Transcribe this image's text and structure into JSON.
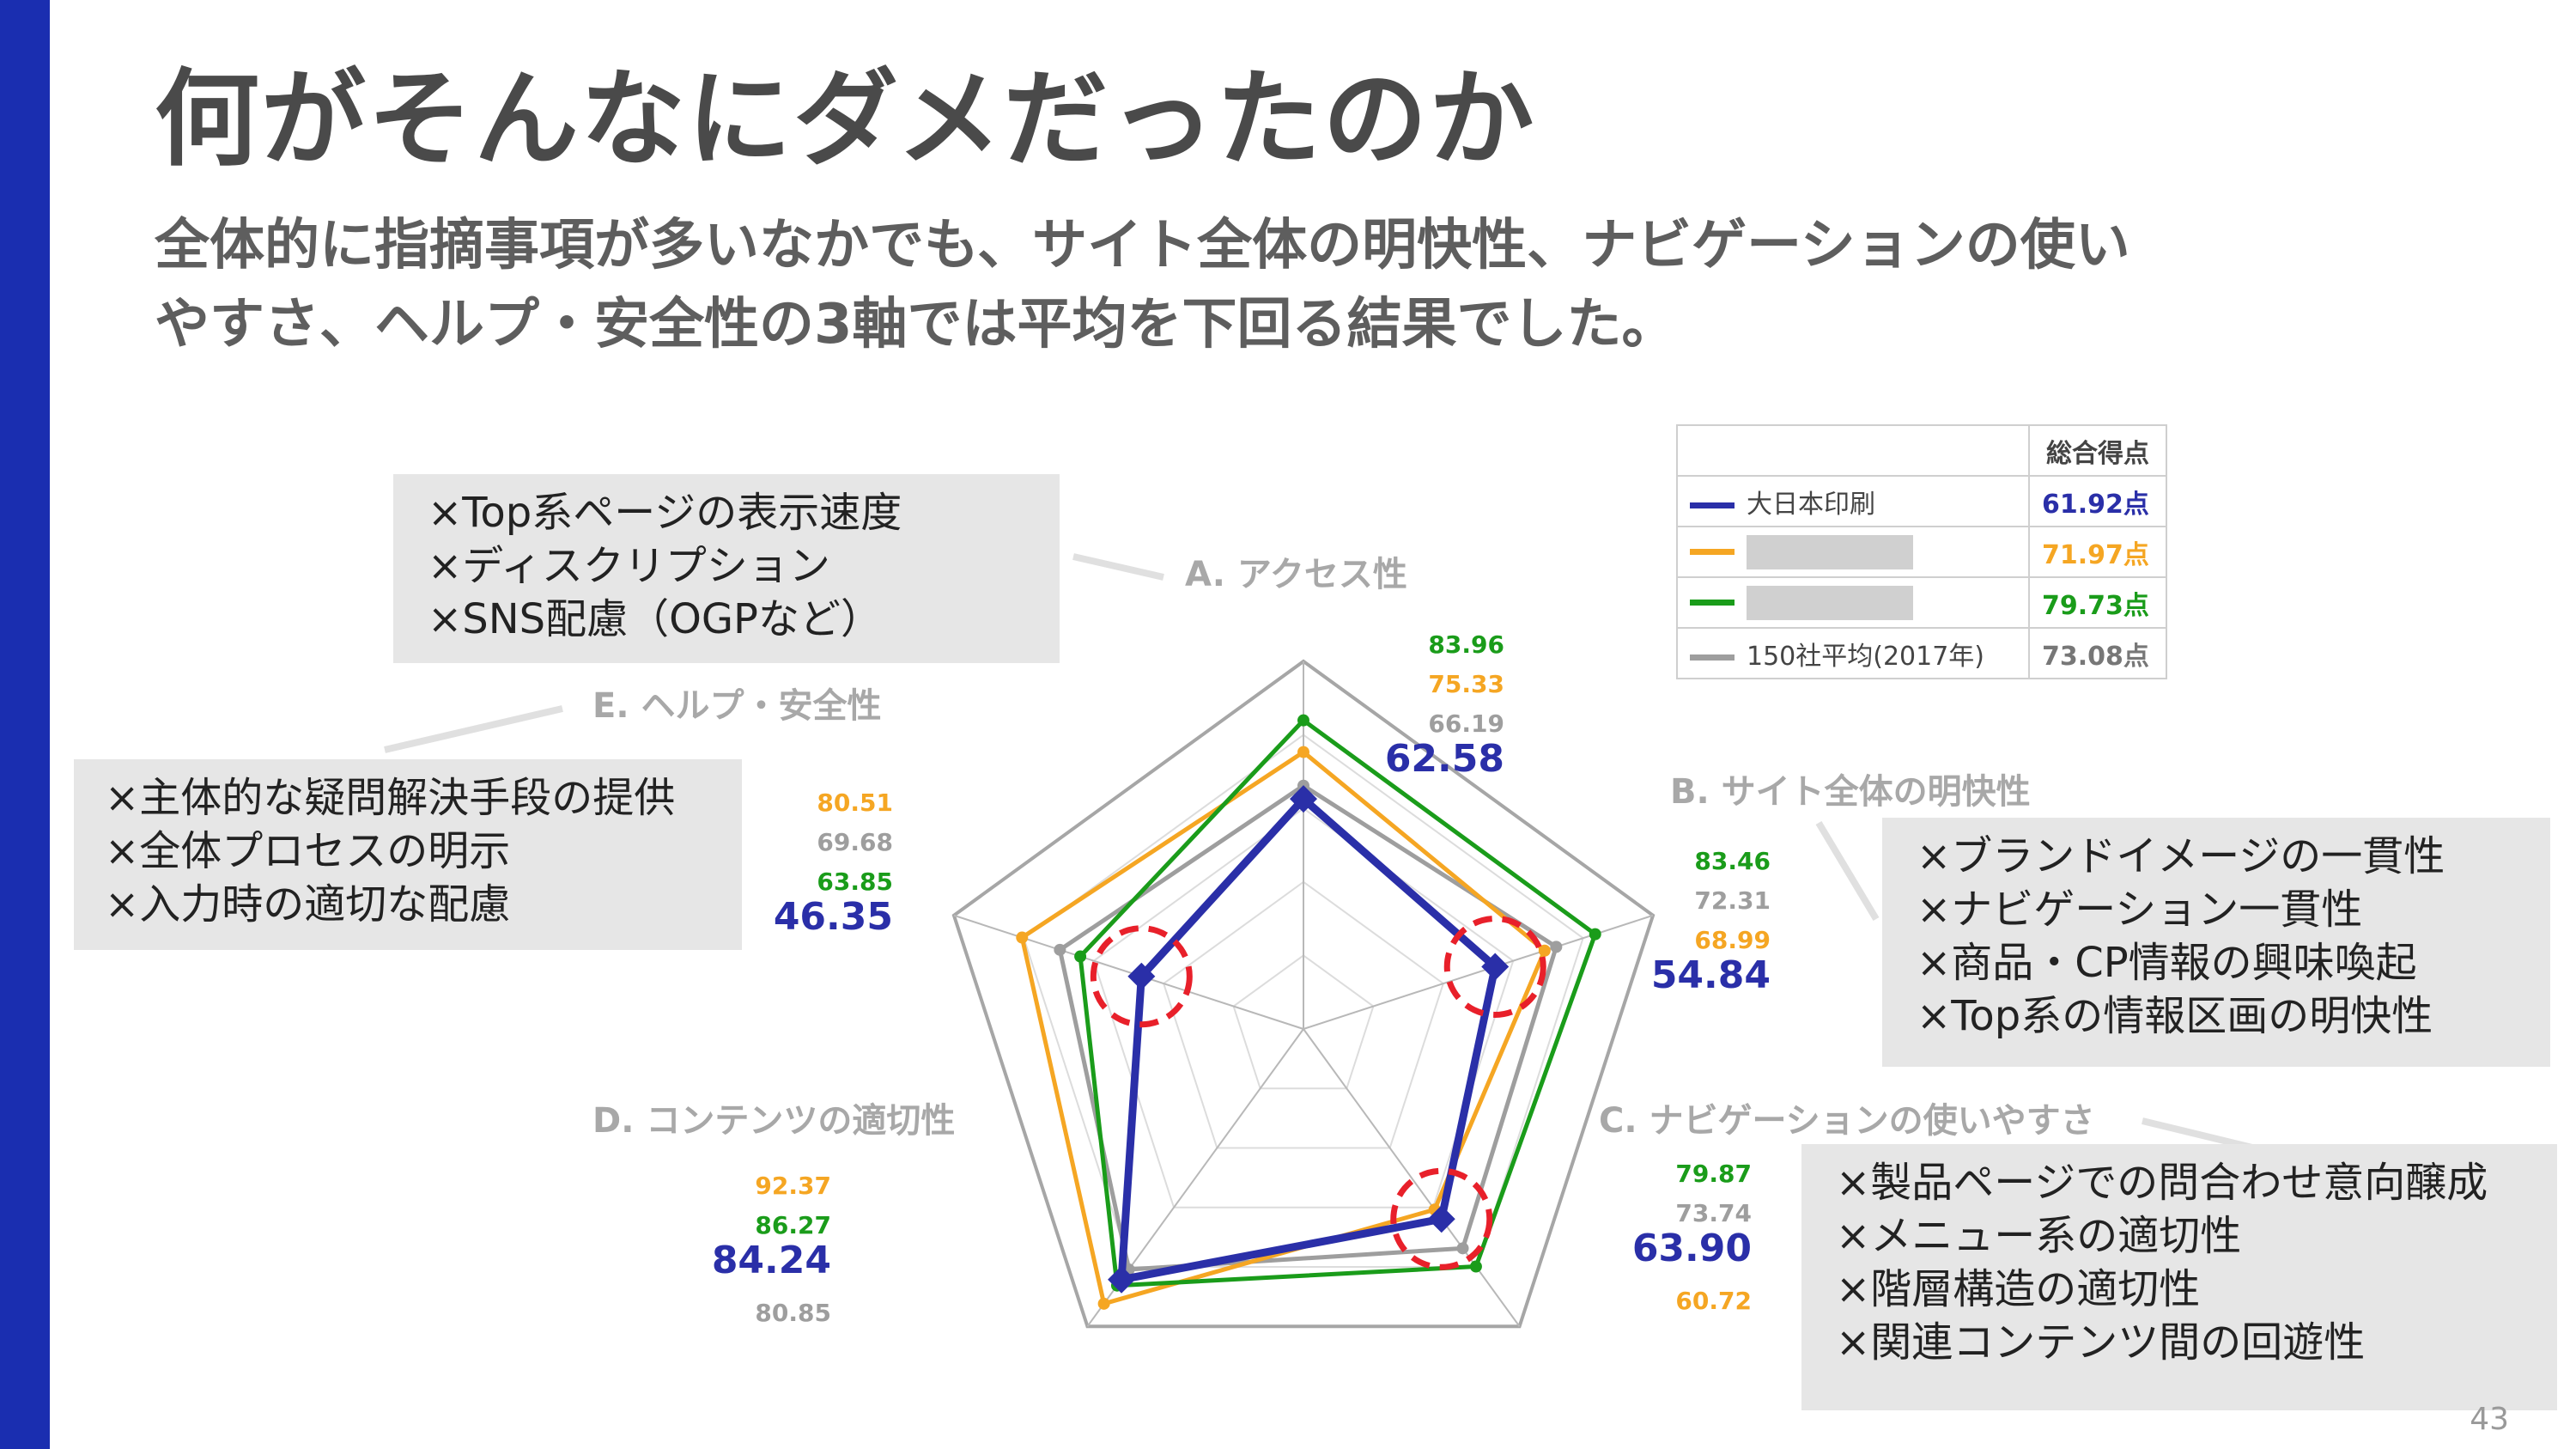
{
  "page": {
    "title": "何がそんなにダメだったのか",
    "subtitle_lines": [
      "全体的に指摘事項が多いなかでも、サイト全体の明快性、ナビゲーションの使い",
      "やすさ、ヘルプ・安全性の3軸では平均を下回る結果でした。"
    ],
    "page_number": "43"
  },
  "colors": {
    "sidebar": "#1a2eb0",
    "dnp": "#2a2fa8",
    "orange": "#f5a623",
    "green": "#1a9c1a",
    "gray": "#9e9e9e",
    "highlight_circle": "#e8202a"
  },
  "legend": {
    "header": "総合得点",
    "rows": [
      {
        "name": "大日本印刷",
        "score": "61.92点",
        "color": "#2a2fa8",
        "masked": false
      },
      {
        "name": "",
        "score": "71.97点",
        "color": "#f5a623",
        "masked": true
      },
      {
        "name": "",
        "score": "79.73点",
        "color": "#1a9c1a",
        "masked": true
      },
      {
        "name": "150社平均(2017年)",
        "score": "73.08点",
        "color": "#9e9e9e",
        "masked": false
      }
    ]
  },
  "callouts": {
    "a": [
      "×Top系ページの表示速度",
      "×ディスクリプション",
      "×SNS配慮（OGPなど）"
    ],
    "e": [
      "×主体的な疑問解決手段の提供",
      "×全体プロセスの明示",
      "×入力時の適切な配慮"
    ],
    "b": [
      "×ブランドイメージの一貫性",
      "×ナビゲーション一貫性",
      "×商品・CP情報の興味喚起",
      "×Top系の情報区画の明快性"
    ],
    "c": [
      "×製品ページでの問合わせ意向醸成",
      "×メニュー系の適切性",
      "×階層構造の適切性",
      "×関連コンテンツ間の回遊性"
    ]
  },
  "chart_data": {
    "type": "radar",
    "axes": [
      "A. アクセス性",
      "B. サイト全体の明快性",
      "C. ナビゲーションの使いやすさ",
      "D. コンテンツの適切性",
      "E. ヘルプ・安全性"
    ],
    "range": [
      0,
      100
    ],
    "series": [
      {
        "name": "150社平均(2017年)",
        "color": "#9e9e9e",
        "values": [
          66.19,
          72.31,
          73.74,
          80.85,
          69.68
        ]
      },
      {
        "name": "",
        "color": "#f5a623",
        "values": [
          75.33,
          68.99,
          60.72,
          92.37,
          80.51
        ]
      },
      {
        "name": "",
        "color": "#1a9c1a",
        "values": [
          83.96,
          83.46,
          79.87,
          86.27,
          63.85
        ]
      },
      {
        "name": "大日本印刷",
        "color": "#2a2fa8",
        "values": [
          62.58,
          54.84,
          63.9,
          84.24,
          46.35
        ]
      }
    ],
    "value_label_order": [
      [
        "green",
        "orange",
        "gray",
        "dnp"
      ],
      [
        "green",
        "gray",
        "orange",
        "dnp"
      ],
      [
        "green",
        "gray",
        "dnp",
        "orange"
      ],
      [
        "orange",
        "green",
        "dnp",
        "gray"
      ],
      [
        "orange",
        "gray",
        "green",
        "dnp"
      ]
    ],
    "value_labels": [
      {
        "green": "83.96",
        "orange": "75.33",
        "gray": "66.19",
        "dnp": "62.58"
      },
      {
        "green": "83.46",
        "gray": "72.31",
        "orange": "68.99",
        "dnp": "54.84"
      },
      {
        "green": "79.87",
        "gray": "73.74",
        "dnp": "63.90",
        "orange": "60.72"
      },
      {
        "orange": "92.37",
        "green": "86.27",
        "dnp": "84.24",
        "gray": "80.85"
      },
      {
        "orange": "80.51",
        "gray": "69.68",
        "green": "63.85",
        "dnp": "46.35"
      }
    ],
    "highlighted_axes": [
      1,
      2,
      4
    ],
    "grid": true
  }
}
